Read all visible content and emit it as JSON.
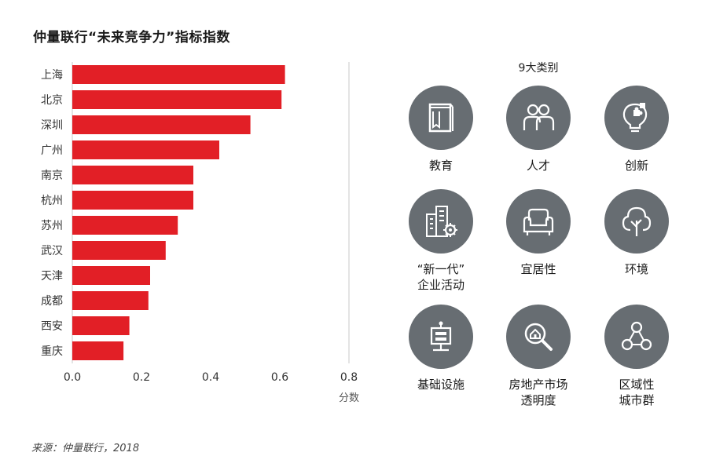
{
  "title": "仲量联行“未来竞争力”指标指数",
  "source": "来源：仲量联行，2018",
  "chart_data": {
    "type": "bar",
    "orientation": "horizontal",
    "categories": [
      "上海",
      "北京",
      "深圳",
      "广州",
      "南京",
      "杭州",
      "苏州",
      "武汉",
      "天津",
      "成都",
      "西安",
      "重庆"
    ],
    "values": [
      0.615,
      0.605,
      0.515,
      0.425,
      0.35,
      0.35,
      0.305,
      0.27,
      0.225,
      0.22,
      0.165,
      0.148
    ],
    "xticks": [
      "0.0",
      "0.2",
      "0.4",
      "0.6",
      "0.8"
    ],
    "xlim": [
      0,
      0.8
    ],
    "xlabel": "分数",
    "ylabel": "",
    "bar_color": "#e21f26",
    "grid": "vertical line at 0.8"
  },
  "categories_panel": {
    "title": "9大类别",
    "circle_color": "#676d72",
    "items": [
      {
        "label": "教育",
        "icon": "book-icon"
      },
      {
        "label": "人才",
        "icon": "people-icon"
      },
      {
        "label": "创新",
        "icon": "lightbulb-puzzle-icon"
      },
      {
        "label": "“新一代”\n企业活动",
        "icon": "building-gear-icon"
      },
      {
        "label": "宜居性",
        "icon": "armchair-icon"
      },
      {
        "label": "环境",
        "icon": "tree-icon"
      },
      {
        "label": "基础设施",
        "icon": "signpost-icon"
      },
      {
        "label": "房地产市场\n透明度",
        "icon": "magnifier-house-icon"
      },
      {
        "label": "区域性\n城市群",
        "icon": "network-icon"
      }
    ]
  }
}
